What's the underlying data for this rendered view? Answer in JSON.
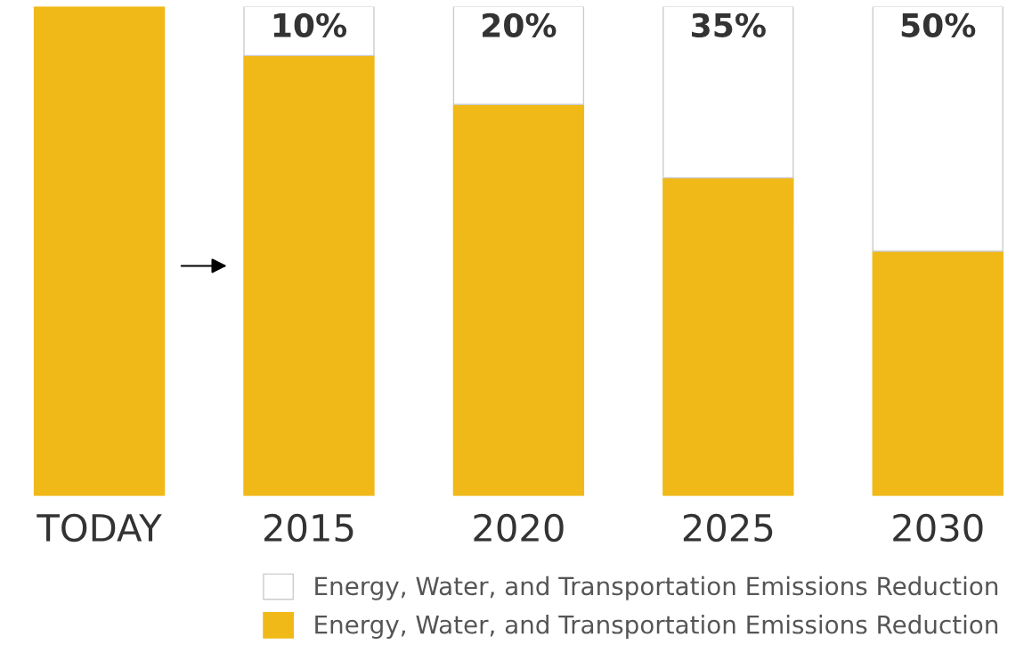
{
  "chart_data": {
    "type": "bar",
    "stacked": true,
    "ylim": [
      0,
      100
    ],
    "categories": [
      "TODAY",
      "2015",
      "2020",
      "2025",
      "2030"
    ],
    "series": [
      {
        "name": "Energy, Water, and Transportation Emissions Reduction",
        "color": "#f0b918",
        "values": [
          100,
          90,
          80,
          65,
          50
        ]
      },
      {
        "name": "Energy, Water, and Transportation Emissions Reduction",
        "color": "#ffffff",
        "values": [
          0,
          10,
          20,
          35,
          50
        ],
        "value_labels": [
          null,
          "10%",
          "20%",
          "35%",
          "50%"
        ]
      }
    ],
    "tick_labels": "x",
    "legend": "bottom right",
    "grid": false
  }
}
